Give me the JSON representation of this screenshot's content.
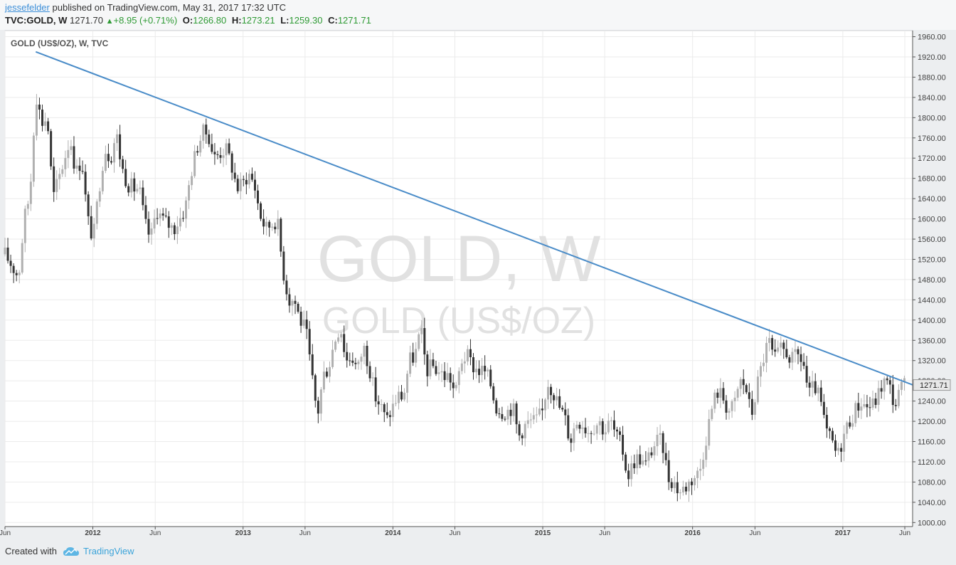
{
  "header": {
    "author": "jessefelder",
    "published_text": "published on TradingView.com, May 31, 2017 17:32 UTC",
    "symbol": "TVC:GOLD, W",
    "last": "1271.70",
    "change": "+8.95 (+0.71%)",
    "open_label": "O:",
    "open": "1266.80",
    "high_label": "H:",
    "high": "1273.21",
    "low_label": "L:",
    "low": "1259.30",
    "close_label": "C:",
    "close": "1271.71"
  },
  "footer": {
    "created_with": "Created with",
    "brand": "TradingView"
  },
  "colors": {
    "trendline": "#4a8cc8",
    "candle_down": "#333333",
    "candle_up": "#b0b0b0",
    "watermark": "#e1e1e1",
    "price_label_bg": "#e8e8e8"
  },
  "chart_data": {
    "type": "candlestick",
    "title": "GOLD (US$/OZ), W, TVC",
    "watermark_line1": "GOLD, W",
    "watermark_line2": "GOLD (US$/OZ)",
    "last_price_label": "1271.71",
    "y_axis": {
      "position": "right",
      "ylim": [
        992,
        1972
      ],
      "ticks": [
        1000,
        1040,
        1080,
        1120,
        1160,
        1200,
        1240,
        1280,
        1320,
        1360,
        1400,
        1440,
        1480,
        1520,
        1560,
        1600,
        1640,
        1680,
        1720,
        1760,
        1800,
        1840,
        1880,
        1920,
        1960
      ]
    },
    "x_axis": {
      "xlim": [
        "2011-06-01",
        "2017-06-20"
      ],
      "ticks": [
        {
          "date": "2011-06-01",
          "label": "Jun"
        },
        {
          "date": "2012-01-01",
          "label": "2012"
        },
        {
          "date": "2012-06-01",
          "label": "Jun"
        },
        {
          "date": "2013-01-01",
          "label": "2013"
        },
        {
          "date": "2013-06-01",
          "label": "Jun"
        },
        {
          "date": "2014-01-01",
          "label": "2014"
        },
        {
          "date": "2014-06-01",
          "label": "Jun"
        },
        {
          "date": "2015-01-01",
          "label": "2015"
        },
        {
          "date": "2015-06-01",
          "label": "Jun"
        },
        {
          "date": "2016-01-01",
          "label": "2016"
        },
        {
          "date": "2016-06-01",
          "label": "Jun"
        },
        {
          "date": "2017-01-01",
          "label": "2017"
        },
        {
          "date": "2017-06-01",
          "label": "Jun"
        }
      ]
    },
    "grid": true,
    "trendline": {
      "start": {
        "date": "2011-08-15",
        "price": 1930
      },
      "end": {
        "date": "2017-06-20",
        "price": 1272
      }
    },
    "weekly_close_path": [
      [
        "2011-06-01",
        1530
      ],
      [
        "2011-06-20",
        1505
      ],
      [
        "2011-07-04",
        1485
      ],
      [
        "2011-07-18",
        1600
      ],
      [
        "2011-08-01",
        1650
      ],
      [
        "2011-08-15",
        1850
      ],
      [
        "2011-08-29",
        1790
      ],
      [
        "2011-09-12",
        1800
      ],
      [
        "2011-09-26",
        1640
      ],
      [
        "2011-10-10",
        1680
      ],
      [
        "2011-10-24",
        1720
      ],
      [
        "2011-11-07",
        1760
      ],
      [
        "2011-11-21",
        1690
      ],
      [
        "2011-12-05",
        1720
      ],
      [
        "2011-12-19",
        1600
      ],
      [
        "2012-01-02",
        1560
      ],
      [
        "2012-01-16",
        1660
      ],
      [
        "2012-01-30",
        1740
      ],
      [
        "2012-02-13",
        1720
      ],
      [
        "2012-02-27",
        1770
      ],
      [
        "2012-03-12",
        1700
      ],
      [
        "2012-03-26",
        1670
      ],
      [
        "2012-04-09",
        1660
      ],
      [
        "2012-04-23",
        1660
      ],
      [
        "2012-05-07",
        1590
      ],
      [
        "2012-05-21",
        1560
      ],
      [
        "2012-06-04",
        1620
      ],
      [
        "2012-06-18",
        1600
      ],
      [
        "2012-07-02",
        1590
      ],
      [
        "2012-07-16",
        1580
      ],
      [
        "2012-07-30",
        1600
      ],
      [
        "2012-08-13",
        1620
      ],
      [
        "2012-08-27",
        1690
      ],
      [
        "2012-09-10",
        1740
      ],
      [
        "2012-09-24",
        1770
      ],
      [
        "2012-10-08",
        1770
      ],
      [
        "2012-10-22",
        1720
      ],
      [
        "2012-11-05",
        1730
      ],
      [
        "2012-11-19",
        1740
      ],
      [
        "2012-12-03",
        1710
      ],
      [
        "2012-12-17",
        1660
      ],
      [
        "2013-01-01",
        1670
      ],
      [
        "2013-01-14",
        1690
      ],
      [
        "2013-01-28",
        1670
      ],
      [
        "2013-02-11",
        1610
      ],
      [
        "2013-02-25",
        1580
      ],
      [
        "2013-03-11",
        1590
      ],
      [
        "2013-03-25",
        1600
      ],
      [
        "2013-04-08",
        1500
      ],
      [
        "2013-04-22",
        1440
      ],
      [
        "2013-05-06",
        1440
      ],
      [
        "2013-05-20",
        1400
      ],
      [
        "2013-06-03",
        1380
      ],
      [
        "2013-06-17",
        1290
      ],
      [
        "2013-07-01",
        1210
      ],
      [
        "2013-07-15",
        1290
      ],
      [
        "2013-07-29",
        1310
      ],
      [
        "2013-08-12",
        1360
      ],
      [
        "2013-08-26",
        1390
      ],
      [
        "2013-09-09",
        1320
      ],
      [
        "2013-09-23",
        1330
      ],
      [
        "2013-10-07",
        1300
      ],
      [
        "2013-10-21",
        1350
      ],
      [
        "2013-11-04",
        1310
      ],
      [
        "2013-11-18",
        1250
      ],
      [
        "2013-12-02",
        1230
      ],
      [
        "2013-12-16",
        1200
      ],
      [
        "2014-01-01",
        1230
      ],
      [
        "2014-01-13",
        1250
      ],
      [
        "2014-01-27",
        1250
      ],
      [
        "2014-02-10",
        1320
      ],
      [
        "2014-02-24",
        1330
      ],
      [
        "2014-03-10",
        1380
      ],
      [
        "2014-03-24",
        1300
      ],
      [
        "2014-04-07",
        1310
      ],
      [
        "2014-04-21",
        1300
      ],
      [
        "2014-05-05",
        1290
      ],
      [
        "2014-05-19",
        1290
      ],
      [
        "2014-06-02",
        1250
      ],
      [
        "2014-06-16",
        1320
      ],
      [
        "2014-06-30",
        1330
      ],
      [
        "2014-07-14",
        1310
      ],
      [
        "2014-07-28",
        1300
      ],
      [
        "2014-08-11",
        1300
      ],
      [
        "2014-08-25",
        1280
      ],
      [
        "2014-09-08",
        1230
      ],
      [
        "2014-09-22",
        1220
      ],
      [
        "2014-10-06",
        1220
      ],
      [
        "2014-10-20",
        1230
      ],
      [
        "2014-11-03",
        1170
      ],
      [
        "2014-11-17",
        1190
      ],
      [
        "2014-12-01",
        1200
      ],
      [
        "2014-12-15",
        1200
      ],
      [
        "2015-01-01",
        1220
      ],
      [
        "2015-01-12",
        1280
      ],
      [
        "2015-01-26",
        1260
      ],
      [
        "2015-02-09",
        1230
      ],
      [
        "2015-02-23",
        1210
      ],
      [
        "2015-03-09",
        1160
      ],
      [
        "2015-03-23",
        1200
      ],
      [
        "2015-04-06",
        1200
      ],
      [
        "2015-04-20",
        1180
      ],
      [
        "2015-05-04",
        1190
      ],
      [
        "2015-05-18",
        1200
      ],
      [
        "2015-06-01",
        1180
      ],
      [
        "2015-06-15",
        1200
      ],
      [
        "2015-06-29",
        1170
      ],
      [
        "2015-07-13",
        1150
      ],
      [
        "2015-07-27",
        1090
      ],
      [
        "2015-08-10",
        1120
      ],
      [
        "2015-08-24",
        1130
      ],
      [
        "2015-09-07",
        1110
      ],
      [
        "2015-09-21",
        1140
      ],
      [
        "2015-10-05",
        1160
      ],
      [
        "2015-10-19",
        1160
      ],
      [
        "2015-11-02",
        1090
      ],
      [
        "2015-11-16",
        1080
      ],
      [
        "2015-11-30",
        1060
      ],
      [
        "2015-12-14",
        1070
      ],
      [
        "2016-01-04",
        1090
      ],
      [
        "2016-01-18",
        1100
      ],
      [
        "2016-02-01",
        1160
      ],
      [
        "2016-02-15",
        1220
      ],
      [
        "2016-02-29",
        1260
      ],
      [
        "2016-03-14",
        1250
      ],
      [
        "2016-03-28",
        1220
      ],
      [
        "2016-04-11",
        1230
      ],
      [
        "2016-04-25",
        1280
      ],
      [
        "2016-05-09",
        1270
      ],
      [
        "2016-05-23",
        1210
      ],
      [
        "2016-06-06",
        1270
      ],
      [
        "2016-06-20",
        1320
      ],
      [
        "2016-07-04",
        1360
      ],
      [
        "2016-07-18",
        1320
      ],
      [
        "2016-08-01",
        1340
      ],
      [
        "2016-08-15",
        1340
      ],
      [
        "2016-08-29",
        1320
      ],
      [
        "2016-09-12",
        1330
      ],
      [
        "2016-09-26",
        1320
      ],
      [
        "2016-10-10",
        1250
      ],
      [
        "2016-10-24",
        1270
      ],
      [
        "2016-11-07",
        1240
      ],
      [
        "2016-11-21",
        1180
      ],
      [
        "2016-12-05",
        1160
      ],
      [
        "2016-12-19",
        1130
      ],
      [
        "2017-01-02",
        1170
      ],
      [
        "2017-01-16",
        1200
      ],
      [
        "2017-01-30",
        1220
      ],
      [
        "2017-02-13",
        1240
      ],
      [
        "2017-02-27",
        1230
      ],
      [
        "2017-03-13",
        1230
      ],
      [
        "2017-03-27",
        1250
      ],
      [
        "2017-04-10",
        1280
      ],
      [
        "2017-04-24",
        1270
      ],
      [
        "2017-05-08",
        1230
      ],
      [
        "2017-05-22",
        1265
      ],
      [
        "2017-06-05",
        1272
      ]
    ]
  }
}
